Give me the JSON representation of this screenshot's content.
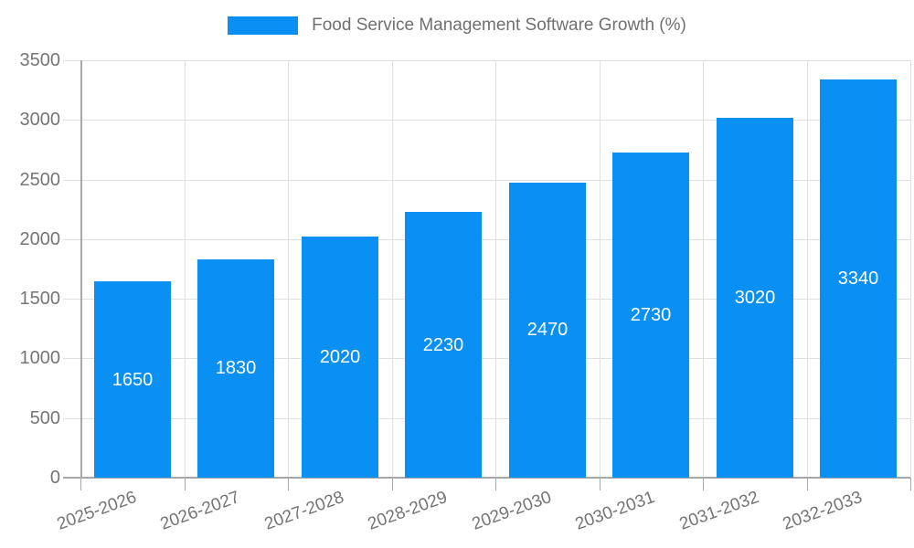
{
  "chart_data": {
    "type": "bar",
    "title": "Food Service Management Software Growth (%)",
    "categories": [
      "2025-2026",
      "2026-2027",
      "2027-2028",
      "2028-2029",
      "2029-2030",
      "2030-2031",
      "2031-2032",
      "2032-2033"
    ],
    "values": [
      1650,
      1830,
      2020,
      2230,
      2470,
      2730,
      3020,
      3340
    ],
    "value_labels": [
      "1650",
      "1830",
      "2020",
      "2230",
      "2470",
      "2730",
      "3020",
      "3340"
    ],
    "xlabel": "",
    "ylabel": "",
    "ylim": [
      0,
      3500
    ],
    "yticks": [
      0,
      500,
      1000,
      1500,
      2000,
      2500,
      3000,
      3500
    ],
    "grid": true,
    "legend_position": "top",
    "colors": {
      "bar": "#0a8ff2",
      "grid": "#e0e0e0",
      "axis": "#a8a8a8",
      "tick_label": "#757575",
      "legend_text": "#707070",
      "value_label": "#ffffff",
      "background": "#ffffff"
    }
  }
}
